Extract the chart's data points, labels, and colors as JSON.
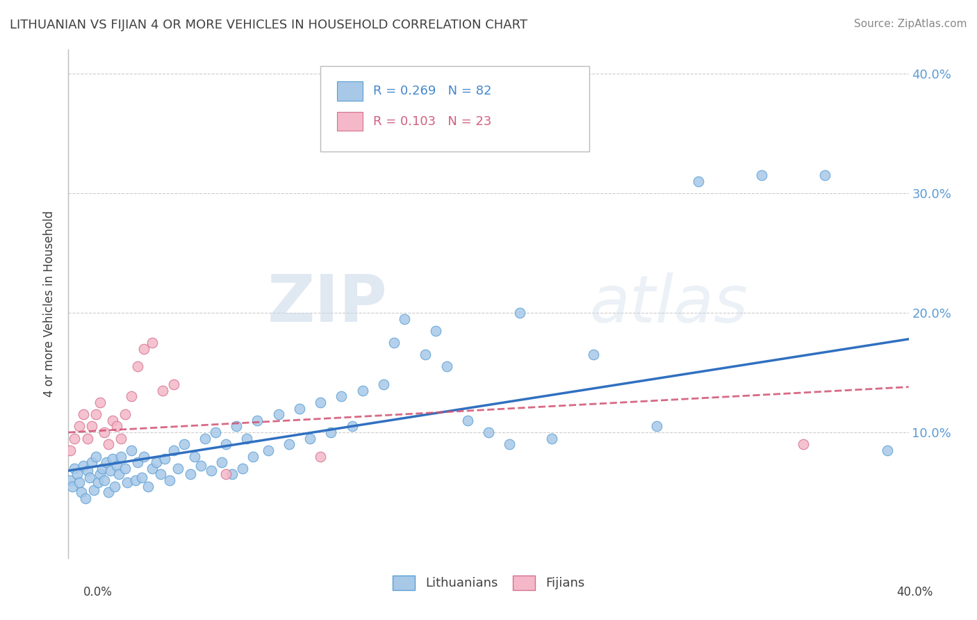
{
  "title": "LITHUANIAN VS FIJIAN 4 OR MORE VEHICLES IN HOUSEHOLD CORRELATION CHART",
  "source": "Source: ZipAtlas.com",
  "ylabel": "4 or more Vehicles in Household",
  "xlim": [
    0.0,
    0.4
  ],
  "ylim": [
    -0.005,
    0.42
  ],
  "background_color": "#ffffff",
  "grid_color": "#cccccc",
  "title_color": "#404040",
  "watermark_text": "ZIPatlas",
  "lit_color": "#a8c8e8",
  "lit_edge_color": "#5a9fd4",
  "fij_color": "#f4b8c8",
  "fij_edge_color": "#d47090",
  "lit_line_color": "#3070c0",
  "fij_line_color": "#d05070",
  "lit_line_x": [
    0.0,
    0.4
  ],
  "lit_line_y": [
    0.068,
    0.178
  ],
  "fij_line_x": [
    0.0,
    0.4
  ],
  "fij_line_y": [
    0.1,
    0.138
  ],
  "lithuanian_x": [
    0.001,
    0.002,
    0.003,
    0.004,
    0.005,
    0.006,
    0.007,
    0.008,
    0.009,
    0.01,
    0.011,
    0.012,
    0.013,
    0.014,
    0.015,
    0.016,
    0.017,
    0.018,
    0.019,
    0.02,
    0.021,
    0.022,
    0.023,
    0.024,
    0.025,
    0.027,
    0.028,
    0.03,
    0.032,
    0.033,
    0.035,
    0.036,
    0.038,
    0.04,
    0.042,
    0.044,
    0.046,
    0.048,
    0.05,
    0.052,
    0.055,
    0.058,
    0.06,
    0.063,
    0.065,
    0.068,
    0.07,
    0.073,
    0.075,
    0.078,
    0.08,
    0.083,
    0.085,
    0.088,
    0.09,
    0.095,
    0.1,
    0.105,
    0.11,
    0.115,
    0.12,
    0.125,
    0.13,
    0.135,
    0.14,
    0.15,
    0.155,
    0.16,
    0.17,
    0.175,
    0.18,
    0.19,
    0.2,
    0.21,
    0.215,
    0.23,
    0.25,
    0.28,
    0.3,
    0.33,
    0.36,
    0.39
  ],
  "lithuanian_y": [
    0.06,
    0.055,
    0.07,
    0.065,
    0.058,
    0.05,
    0.072,
    0.045,
    0.068,
    0.062,
    0.075,
    0.052,
    0.08,
    0.058,
    0.065,
    0.07,
    0.06,
    0.075,
    0.05,
    0.068,
    0.078,
    0.055,
    0.072,
    0.065,
    0.08,
    0.07,
    0.058,
    0.085,
    0.06,
    0.075,
    0.062,
    0.08,
    0.055,
    0.07,
    0.075,
    0.065,
    0.078,
    0.06,
    0.085,
    0.07,
    0.09,
    0.065,
    0.08,
    0.072,
    0.095,
    0.068,
    0.1,
    0.075,
    0.09,
    0.065,
    0.105,
    0.07,
    0.095,
    0.08,
    0.11,
    0.085,
    0.115,
    0.09,
    0.12,
    0.095,
    0.125,
    0.1,
    0.13,
    0.105,
    0.135,
    0.14,
    0.175,
    0.195,
    0.165,
    0.185,
    0.155,
    0.11,
    0.1,
    0.09,
    0.2,
    0.095,
    0.165,
    0.105,
    0.31,
    0.315,
    0.315,
    0.085
  ],
  "fijian_x": [
    0.001,
    0.003,
    0.005,
    0.007,
    0.009,
    0.011,
    0.013,
    0.015,
    0.017,
    0.019,
    0.021,
    0.023,
    0.025,
    0.027,
    0.03,
    0.033,
    0.036,
    0.04,
    0.045,
    0.05,
    0.075,
    0.12,
    0.35
  ],
  "fijian_y": [
    0.085,
    0.095,
    0.105,
    0.115,
    0.095,
    0.105,
    0.115,
    0.125,
    0.1,
    0.09,
    0.11,
    0.105,
    0.095,
    0.115,
    0.13,
    0.155,
    0.17,
    0.175,
    0.135,
    0.14,
    0.065,
    0.08,
    0.09
  ]
}
